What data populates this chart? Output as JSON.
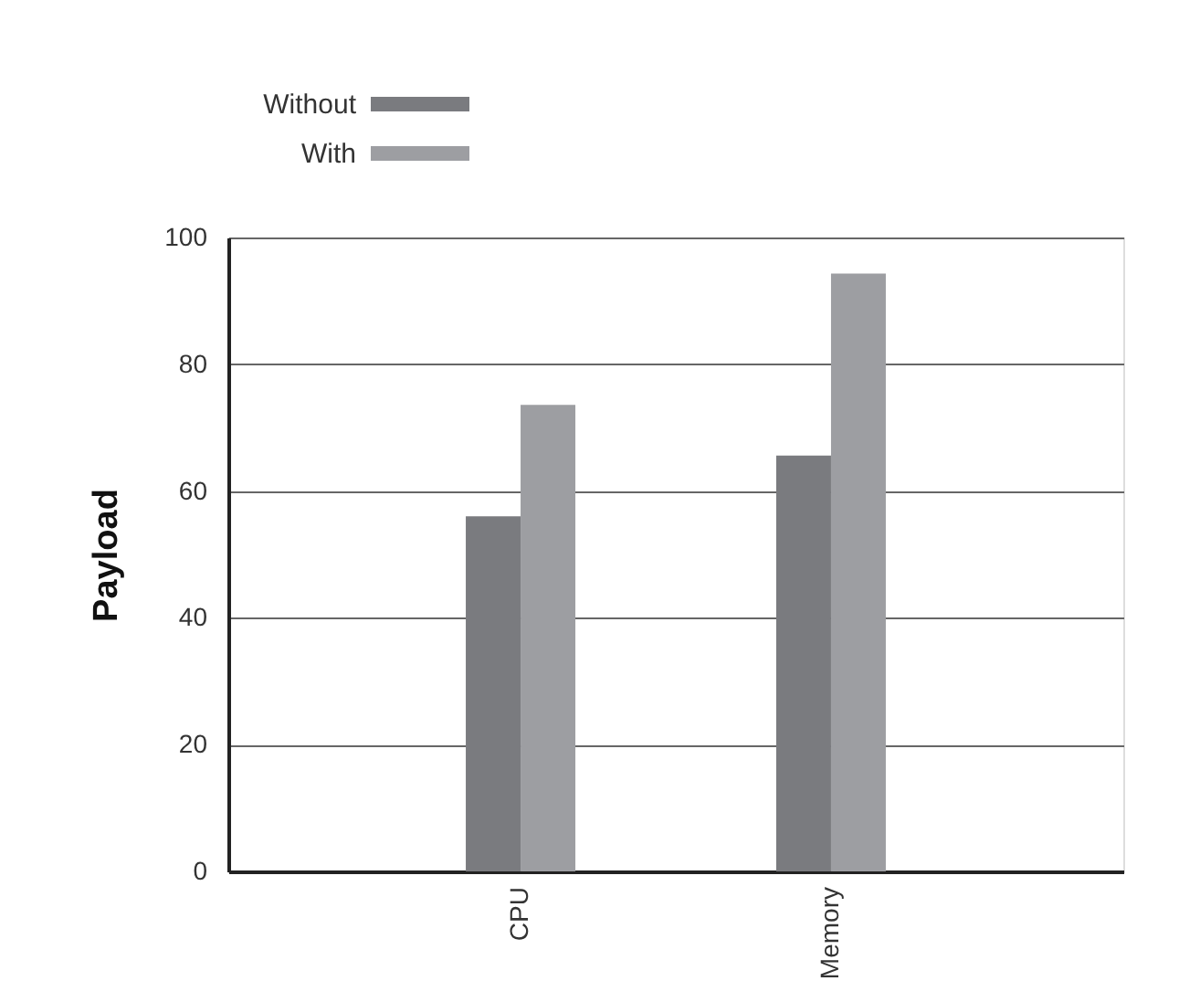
{
  "chart_data": {
    "type": "bar",
    "ylabel": "Payload",
    "categories": [
      "CPU",
      "Memory"
    ],
    "series": [
      {
        "name": "Without",
        "color": "#7a7b7f",
        "values": [
          56,
          65.6
        ]
      },
      {
        "name": "With",
        "color": "#9d9ea2",
        "values": [
          73.6,
          94.3
        ]
      }
    ],
    "ylim": [
      0,
      100
    ],
    "yticks": [
      0,
      20,
      40,
      60,
      80,
      100
    ],
    "grid": "y",
    "legend": "top left"
  }
}
